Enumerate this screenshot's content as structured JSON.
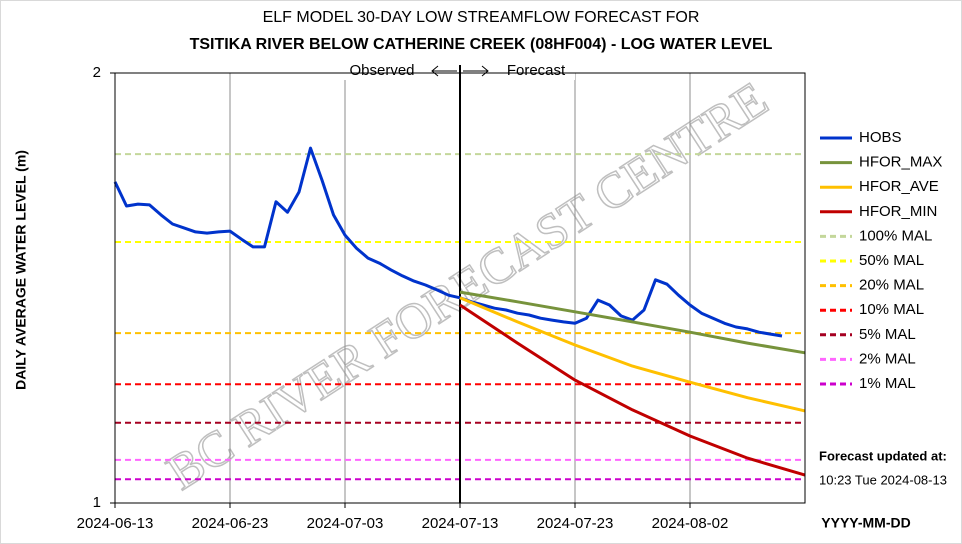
{
  "chart_data": {
    "type": "line",
    "title": "ELF MODEL 30-DAY LOW STREAMFLOW FORECAST FOR",
    "subtitle": "TSITIKA RIVER BELOW CATHERINE CREEK (08HF004) - LOG WATER LEVEL",
    "ylabel": "DAILY AVERAGE WATER LEVEL (m)",
    "xlabel": "YYYY-MM-DD",
    "yscale": "log",
    "ylim": [
      1,
      2
    ],
    "yticks": [
      1,
      2
    ],
    "xlim": [
      "2024-06-13",
      "2024-08-12"
    ],
    "xticks": [
      "2024-06-13",
      "2024-06-23",
      "2024-07-03",
      "2024-07-13",
      "2024-07-23",
      "2024-08-02"
    ],
    "grid": true,
    "divider": "2024-07-13",
    "annotations": {
      "observed": "Observed",
      "forecast": "Forecast",
      "updated": "Forecast updated at:",
      "updated_time": "10:23 Tue 2024-08-13"
    },
    "watermark": "BC RIVER FORECAST CENTRE",
    "series": [
      {
        "name": "HOBS",
        "color": "#0033cc",
        "x": [
          "2024-06-13",
          "2024-06-14",
          "2024-06-15",
          "2024-06-16",
          "2024-06-17",
          "2024-06-18",
          "2024-06-19",
          "2024-06-20",
          "2024-06-21",
          "2024-06-22",
          "2024-06-23",
          "2024-06-24",
          "2024-06-25",
          "2024-06-26",
          "2024-06-27",
          "2024-06-28",
          "2024-06-29",
          "2024-06-30",
          "2024-07-01",
          "2024-07-02",
          "2024-07-03",
          "2024-07-04",
          "2024-07-05",
          "2024-07-06",
          "2024-07-07",
          "2024-07-08",
          "2024-07-09",
          "2024-07-10",
          "2024-07-11",
          "2024-07-12",
          "2024-07-13",
          "2024-07-14",
          "2024-07-15",
          "2024-07-16",
          "2024-07-17",
          "2024-07-18",
          "2024-07-19",
          "2024-07-20",
          "2024-07-21",
          "2024-07-22",
          "2024-07-23",
          "2024-07-24",
          "2024-07-25",
          "2024-07-26",
          "2024-07-27",
          "2024-07-28",
          "2024-07-29",
          "2024-07-30",
          "2024-07-31",
          "2024-08-01",
          "2024-08-02",
          "2024-08-03",
          "2024-08-04",
          "2024-08-05",
          "2024-08-06",
          "2024-08-07",
          "2024-08-08",
          "2024-08-09",
          "2024-08-10"
        ],
        "values": [
          1.678,
          1.614,
          1.619,
          1.617,
          1.591,
          1.568,
          1.558,
          1.548,
          1.545,
          1.548,
          1.55,
          1.53,
          1.511,
          1.511,
          1.625,
          1.598,
          1.651,
          1.772,
          1.683,
          1.591,
          1.54,
          1.508,
          1.484,
          1.472,
          1.456,
          1.442,
          1.43,
          1.421,
          1.41,
          1.398,
          1.392,
          1.383,
          1.376,
          1.369,
          1.365,
          1.358,
          1.354,
          1.347,
          1.343,
          1.339,
          1.336,
          1.347,
          1.387,
          1.376,
          1.352,
          1.343,
          1.365,
          1.433,
          1.423,
          1.398,
          1.376,
          1.358,
          1.347,
          1.336,
          1.328,
          1.324,
          1.317,
          1.313,
          1.309
        ]
      },
      {
        "name": "HFOR_MAX",
        "color": "#77933c",
        "x": [
          "2024-07-13",
          "2024-07-18",
          "2024-07-23",
          "2024-07-28",
          "2024-08-02",
          "2024-08-07",
          "2024-08-12"
        ],
        "values": [
          1.405,
          1.383,
          1.361,
          1.339,
          1.317,
          1.294,
          1.274
        ]
      },
      {
        "name": "HFOR_AVE",
        "color": "#ffc000",
        "x": [
          "2024-07-13",
          "2024-07-18",
          "2024-07-23",
          "2024-07-28",
          "2024-08-02",
          "2024-08-07",
          "2024-08-12"
        ],
        "values": [
          1.392,
          1.339,
          1.29,
          1.247,
          1.215,
          1.185,
          1.16
        ]
      },
      {
        "name": "HFOR_MIN",
        "color": "#c00000",
        "x": [
          "2024-07-13",
          "2024-07-18",
          "2024-07-23",
          "2024-07-28",
          "2024-08-02",
          "2024-08-07",
          "2024-08-12"
        ],
        "values": [
          1.376,
          1.294,
          1.219,
          1.162,
          1.114,
          1.075,
          1.046
        ]
      }
    ],
    "reference_lines": [
      {
        "name": "100% MAL",
        "color": "#c4d79b",
        "value": 1.755
      },
      {
        "name": "50% MAL",
        "color": "#ffff00",
        "value": 1.523
      },
      {
        "name": "20% MAL",
        "color": "#ffc000",
        "value": 1.315
      },
      {
        "name": "10% MAL",
        "color": "#ff0000",
        "value": 1.211
      },
      {
        "name": "5% MAL",
        "color": "#a50021",
        "value": 1.138
      },
      {
        "name": "2% MAL",
        "color": "#ff66ff",
        "value": 1.072
      },
      {
        "name": "1% MAL",
        "color": "#cc00cc",
        "value": 1.039
      }
    ]
  }
}
